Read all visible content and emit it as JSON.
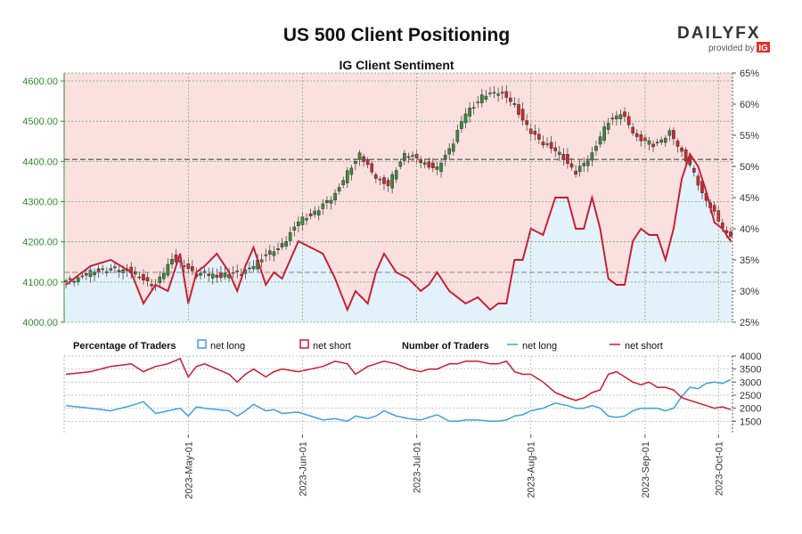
{
  "header": {
    "title": "US 500 Client Positioning",
    "subtitle": "IG Client Sentiment",
    "brand": "DAILYFX",
    "brand_sub": "provided by",
    "brand_ig": "IG"
  },
  "colors": {
    "price_axis": "#2e8b2e",
    "net_long": "#3fa0e0",
    "net_short": "#cc1a2e",
    "short_fill": "#fbe0e0",
    "long_fill": "#e3f1fa",
    "candle_up": "#3a8a3a",
    "candle_down": "#cc2a2a"
  },
  "legend": {
    "pct_title": "Percentage of Traders",
    "num_title": "Number of Traders",
    "net_long": "net long",
    "net_short": "net short"
  },
  "chart_data": [
    {
      "type": "candlestick",
      "title": "US 500 Client Positioning",
      "subtitle": "IG Client Sentiment",
      "ylim": [
        4000,
        4620
      ],
      "yticks": [
        "4000.00",
        "4100.00",
        "4200.00",
        "4300.00",
        "4400.00",
        "4500.00",
        "4600.00"
      ],
      "secondary_ylim": [
        25,
        65
      ],
      "secondary_yticks": [
        "25%",
        "30%",
        "35%",
        "40%",
        "45%",
        "50%",
        "55%",
        "60%",
        "65%"
      ],
      "x_ticks": [
        "2023-May-01",
        "2023-Jun-01",
        "2023-Jul-01",
        "2023-Aug-01",
        "2023-Sep-01",
        "2023-Oct-01"
      ],
      "last_price": 4405,
      "close_anchors": [
        [
          0,
          4100
        ],
        [
          8,
          4130
        ],
        [
          15,
          4130
        ],
        [
          22,
          4090
        ],
        [
          26,
          4160
        ],
        [
          32,
          4120
        ],
        [
          38,
          4115
        ],
        [
          45,
          4130
        ],
        [
          49,
          4170
        ],
        [
          52,
          4180
        ],
        [
          57,
          4250
        ],
        [
          62,
          4280
        ],
        [
          66,
          4320
        ],
        [
          72,
          4420
        ],
        [
          75,
          4370
        ],
        [
          79,
          4340
        ],
        [
          83,
          4420
        ],
        [
          87,
          4400
        ],
        [
          91,
          4380
        ],
        [
          95,
          4450
        ],
        [
          98,
          4520
        ],
        [
          102,
          4560
        ],
        [
          106,
          4575
        ],
        [
          110,
          4540
        ],
        [
          114,
          4470
        ],
        [
          118,
          4440
        ],
        [
          122,
          4410
        ],
        [
          125,
          4370
        ],
        [
          129,
          4420
        ],
        [
          133,
          4500
        ],
        [
          136,
          4520
        ],
        [
          140,
          4460
        ],
        [
          144,
          4440
        ],
        [
          148,
          4470
        ],
        [
          150,
          4440
        ],
        [
          153,
          4390
        ],
        [
          156,
          4320
        ],
        [
          158,
          4290
        ],
        [
          160,
          4250
        ],
        [
          162,
          4220
        ]
      ],
      "net_long_pct_anchors": [
        [
          0,
          31
        ],
        [
          6,
          34
        ],
        [
          11,
          35
        ],
        [
          16,
          33
        ],
        [
          19,
          28
        ],
        [
          22,
          31
        ],
        [
          25,
          30
        ],
        [
          28,
          36
        ],
        [
          30,
          28
        ],
        [
          32,
          33
        ],
        [
          34,
          34
        ],
        [
          37,
          36
        ],
        [
          40,
          33
        ],
        [
          42,
          30
        ],
        [
          44,
          34
        ],
        [
          46,
          37
        ],
        [
          49,
          31
        ],
        [
          51,
          33
        ],
        [
          53,
          32
        ],
        [
          57,
          38
        ],
        [
          60,
          37
        ],
        [
          63,
          36
        ],
        [
          66,
          32
        ],
        [
          69,
          27
        ],
        [
          71,
          30
        ],
        [
          74,
          28
        ],
        [
          76,
          33
        ],
        [
          78,
          36
        ],
        [
          81,
          33
        ],
        [
          84,
          32
        ],
        [
          87,
          30
        ],
        [
          89,
          31
        ],
        [
          91,
          33
        ],
        [
          94,
          30
        ],
        [
          96,
          29
        ],
        [
          98,
          28
        ],
        [
          101,
          29
        ],
        [
          104,
          27
        ],
        [
          106,
          28
        ],
        [
          108,
          28
        ],
        [
          110,
          35
        ],
        [
          112,
          35
        ],
        [
          114,
          40
        ],
        [
          117,
          39
        ],
        [
          120,
          45
        ],
        [
          123,
          45
        ],
        [
          125,
          40
        ],
        [
          127,
          40
        ],
        [
          129,
          45
        ],
        [
          131,
          40
        ],
        [
          133,
          32
        ],
        [
          135,
          31
        ],
        [
          137,
          31
        ],
        [
          139,
          38
        ],
        [
          141,
          40
        ],
        [
          143,
          39
        ],
        [
          145,
          39
        ],
        [
          147,
          35
        ],
        [
          149,
          40
        ],
        [
          151,
          48
        ],
        [
          153,
          52
        ],
        [
          155,
          50
        ],
        [
          157,
          46
        ],
        [
          159,
          41
        ],
        [
          161,
          40
        ],
        [
          163,
          38
        ]
      ],
      "net_short_pct_anchors": [
        [
          0,
          69
        ],
        [
          6,
          66
        ],
        [
          11,
          65
        ],
        [
          16,
          67
        ],
        [
          19,
          72
        ],
        [
          22,
          69
        ],
        [
          25,
          70
        ],
        [
          28,
          64
        ],
        [
          30,
          72
        ],
        [
          32,
          67
        ],
        [
          34,
          66
        ],
        [
          37,
          64
        ],
        [
          40,
          67
        ],
        [
          42,
          70
        ],
        [
          44,
          66
        ],
        [
          46,
          63
        ],
        [
          49,
          69
        ],
        [
          51,
          67
        ],
        [
          53,
          68
        ],
        [
          57,
          62
        ],
        [
          60,
          63
        ],
        [
          63,
          64
        ],
        [
          66,
          68
        ],
        [
          69,
          73
        ],
        [
          71,
          70
        ],
        [
          74,
          72
        ],
        [
          76,
          67
        ],
        [
          78,
          64
        ],
        [
          81,
          67
        ],
        [
          84,
          68
        ],
        [
          87,
          70
        ],
        [
          89,
          69
        ],
        [
          91,
          67
        ],
        [
          94,
          70
        ],
        [
          96,
          71
        ],
        [
          98,
          72
        ],
        [
          101,
          71
        ],
        [
          104,
          73
        ],
        [
          106,
          72
        ],
        [
          108,
          72
        ],
        [
          110,
          65
        ],
        [
          112,
          65
        ],
        [
          114,
          60
        ],
        [
          117,
          61
        ],
        [
          120,
          55
        ],
        [
          123,
          55
        ],
        [
          125,
          60
        ],
        [
          127,
          60
        ],
        [
          129,
          55
        ],
        [
          131,
          60
        ],
        [
          133,
          68
        ],
        [
          135,
          69
        ],
        [
          137,
          69
        ],
        [
          139,
          62
        ],
        [
          141,
          60
        ],
        [
          143,
          61
        ],
        [
          145,
          61
        ],
        [
          147,
          65
        ],
        [
          149,
          60
        ],
        [
          151,
          52
        ],
        [
          153,
          48
        ],
        [
          155,
          50
        ],
        [
          157,
          54
        ],
        [
          159,
          59
        ],
        [
          161,
          60
        ],
        [
          163,
          62
        ]
      ]
    },
    {
      "type": "line",
      "ylim": [
        1000,
        4000
      ],
      "yticks": [
        "1500",
        "2000",
        "2500",
        "3000",
        "3500",
        "4000"
      ],
      "series": [
        {
          "name": "net long",
          "color": "#3fa0e0",
          "anchors": [
            [
              0,
              2100
            ],
            [
              6,
              2000
            ],
            [
              11,
              1900
            ],
            [
              16,
              2100
            ],
            [
              19,
              2250
            ],
            [
              22,
              1800
            ],
            [
              25,
              1900
            ],
            [
              28,
              2000
            ],
            [
              30,
              1700
            ],
            [
              32,
              2050
            ],
            [
              34,
              2000
            ],
            [
              37,
              1950
            ],
            [
              40,
              1900
            ],
            [
              42,
              1700
            ],
            [
              44,
              1900
            ],
            [
              46,
              2150
            ],
            [
              49,
              1900
            ],
            [
              51,
              1950
            ],
            [
              53,
              1800
            ],
            [
              57,
              1850
            ],
            [
              60,
              1700
            ],
            [
              63,
              1550
            ],
            [
              66,
              1600
            ],
            [
              69,
              1500
            ],
            [
              71,
              1700
            ],
            [
              74,
              1600
            ],
            [
              76,
              1700
            ],
            [
              78,
              1900
            ],
            [
              81,
              1700
            ],
            [
              84,
              1600
            ],
            [
              87,
              1550
            ],
            [
              89,
              1650
            ],
            [
              91,
              1750
            ],
            [
              94,
              1500
            ],
            [
              96,
              1500
            ],
            [
              98,
              1550
            ],
            [
              101,
              1550
            ],
            [
              104,
              1500
            ],
            [
              106,
              1500
            ],
            [
              108,
              1550
            ],
            [
              110,
              1700
            ],
            [
              112,
              1750
            ],
            [
              114,
              1900
            ],
            [
              117,
              2000
            ],
            [
              120,
              2200
            ],
            [
              123,
              2100
            ],
            [
              125,
              2000
            ],
            [
              127,
              2000
            ],
            [
              129,
              2100
            ],
            [
              131,
              2000
            ],
            [
              133,
              1700
            ],
            [
              135,
              1650
            ],
            [
              137,
              1700
            ],
            [
              139,
              1900
            ],
            [
              141,
              2000
            ],
            [
              143,
              2000
            ],
            [
              145,
              2000
            ],
            [
              147,
              1900
            ],
            [
              149,
              2000
            ],
            [
              151,
              2450
            ],
            [
              153,
              2800
            ],
            [
              155,
              2750
            ],
            [
              157,
              2950
            ],
            [
              159,
              3000
            ],
            [
              161,
              2950
            ],
            [
              163,
              3100
            ]
          ]
        },
        {
          "name": "net short",
          "color": "#cc1a2e",
          "anchors": [
            [
              0,
              3300
            ],
            [
              6,
              3400
            ],
            [
              11,
              3600
            ],
            [
              16,
              3700
            ],
            [
              19,
              3400
            ],
            [
              22,
              3600
            ],
            [
              25,
              3700
            ],
            [
              28,
              3900
            ],
            [
              30,
              3200
            ],
            [
              32,
              3600
            ],
            [
              34,
              3700
            ],
            [
              37,
              3500
            ],
            [
              40,
              3300
            ],
            [
              42,
              3000
            ],
            [
              44,
              3300
            ],
            [
              46,
              3500
            ],
            [
              49,
              3200
            ],
            [
              51,
              3400
            ],
            [
              53,
              3500
            ],
            [
              57,
              3400
            ],
            [
              60,
              3500
            ],
            [
              63,
              3600
            ],
            [
              66,
              3800
            ],
            [
              69,
              3700
            ],
            [
              71,
              3300
            ],
            [
              74,
              3600
            ],
            [
              76,
              3700
            ],
            [
              78,
              3800
            ],
            [
              81,
              3700
            ],
            [
              84,
              3500
            ],
            [
              87,
              3400
            ],
            [
              89,
              3500
            ],
            [
              91,
              3500
            ],
            [
              94,
              3700
            ],
            [
              96,
              3700
            ],
            [
              98,
              3800
            ],
            [
              101,
              3800
            ],
            [
              104,
              3700
            ],
            [
              106,
              3700
            ],
            [
              108,
              3800
            ],
            [
              110,
              3400
            ],
            [
              112,
              3300
            ],
            [
              114,
              3300
            ],
            [
              117,
              3000
            ],
            [
              120,
              2600
            ],
            [
              123,
              2400
            ],
            [
              125,
              2300
            ],
            [
              127,
              2400
            ],
            [
              129,
              2600
            ],
            [
              131,
              2700
            ],
            [
              133,
              3300
            ],
            [
              135,
              3400
            ],
            [
              137,
              3200
            ],
            [
              139,
              3000
            ],
            [
              141,
              2900
            ],
            [
              143,
              3000
            ],
            [
              145,
              2800
            ],
            [
              147,
              2800
            ],
            [
              149,
              2700
            ],
            [
              151,
              2400
            ],
            [
              153,
              2300
            ],
            [
              155,
              2200
            ],
            [
              157,
              2100
            ],
            [
              159,
              2000
            ],
            [
              161,
              2050
            ],
            [
              163,
              1950
            ]
          ]
        }
      ]
    }
  ]
}
